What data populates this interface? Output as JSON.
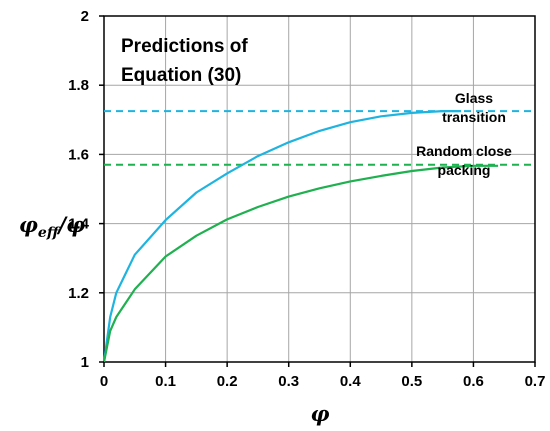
{
  "chart_data": {
    "type": "line",
    "title_lines": [
      "Predictions of",
      "Equation (30)"
    ],
    "xlabel": "φ",
    "ylabel": "φeff/φ",
    "xlim": [
      0,
      0.7
    ],
    "ylim": [
      1,
      2
    ],
    "grid": true,
    "xticks": [
      "0",
      "0.1",
      "0.2",
      "0.3",
      "0.4",
      "0.5",
      "0.6",
      "0.7"
    ],
    "yticks": [
      "1",
      "1.2",
      "1.4",
      "1.6",
      "1.8",
      "2"
    ],
    "x_tick_values": [
      0,
      0.1,
      0.2,
      0.3,
      0.4,
      0.5,
      0.6,
      0.7
    ],
    "y_tick_values": [
      1,
      1.2,
      1.4,
      1.6,
      1.8,
      2
    ],
    "series": [
      {
        "color": "#1fb4e0",
        "style": "solid",
        "x": [
          0,
          0.01,
          0.02,
          0.05,
          0.1,
          0.15,
          0.2,
          0.25,
          0.3,
          0.35,
          0.4,
          0.45,
          0.5,
          0.55,
          0.58
        ],
        "y": [
          1,
          1.13,
          1.2,
          1.31,
          1.41,
          1.49,
          1.545,
          1.595,
          1.635,
          1.668,
          1.693,
          1.71,
          1.72,
          1.725,
          1.725
        ]
      },
      {
        "color": "#1fb050",
        "style": "solid",
        "x": [
          0,
          0.01,
          0.02,
          0.05,
          0.1,
          0.15,
          0.2,
          0.25,
          0.3,
          0.35,
          0.4,
          0.45,
          0.5,
          0.55,
          0.6,
          0.64
        ],
        "y": [
          1,
          1.09,
          1.13,
          1.21,
          1.305,
          1.365,
          1.412,
          1.448,
          1.478,
          1.502,
          1.522,
          1.538,
          1.552,
          1.562,
          1.567,
          1.567
        ]
      }
    ],
    "reference_lines": [
      {
        "y": 1.725,
        "color": "#1fb4e0",
        "style": "dashed",
        "label_lines": [
          "Glass",
          "transition"
        ]
      },
      {
        "y": 1.57,
        "color": "#1fb050",
        "style": "dashed",
        "label_lines": [
          "Random close",
          "packing"
        ]
      }
    ]
  }
}
